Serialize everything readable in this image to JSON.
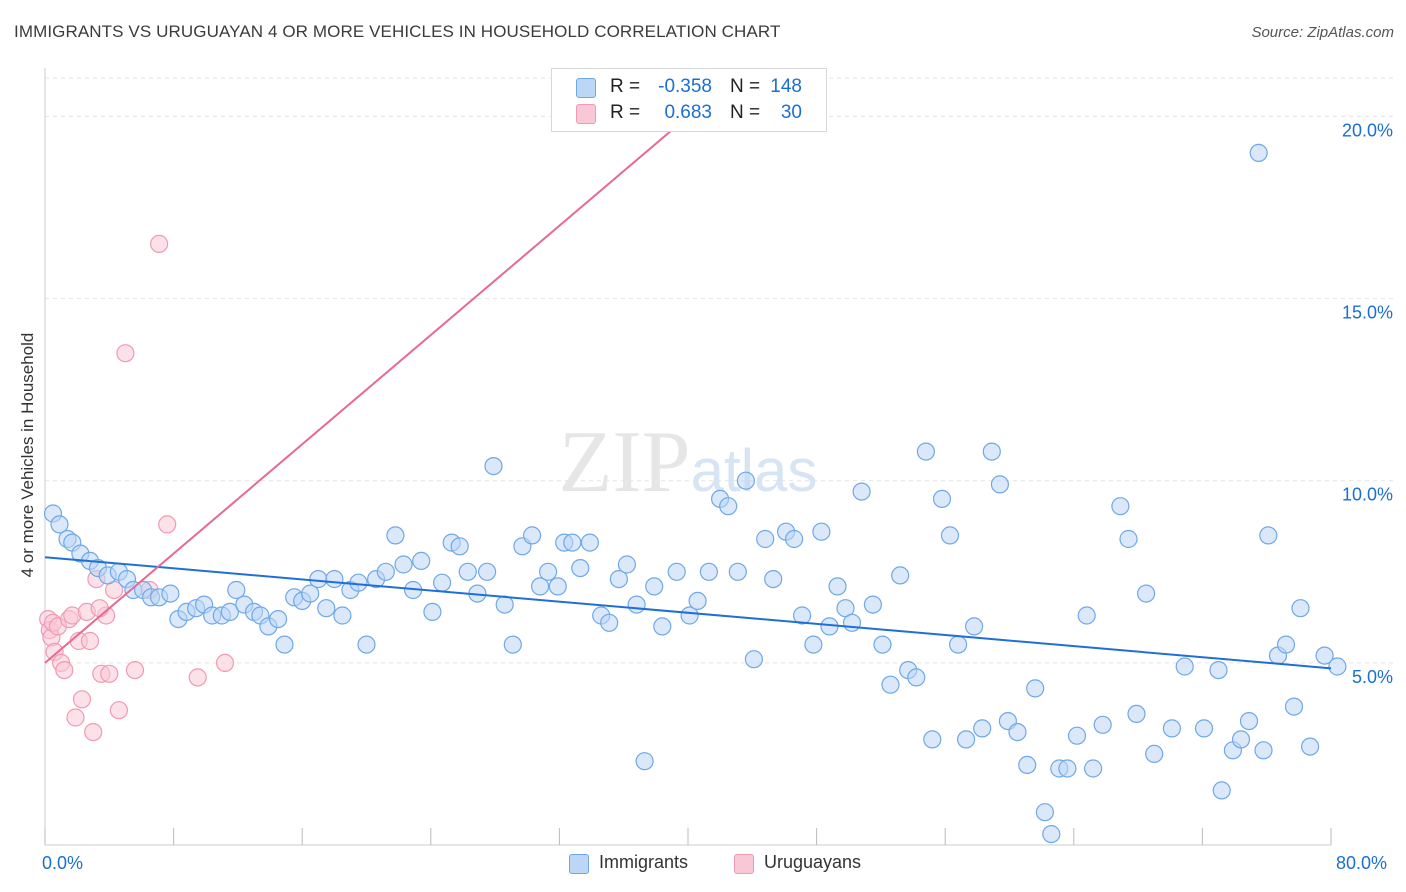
{
  "chart_data": {
    "type": "scatter",
    "title": "IMMIGRANTS VS URUGUAYAN 4 OR MORE VEHICLES IN HOUSEHOLD CORRELATION CHART",
    "source": "Source: ZipAtlas.com",
    "xlabel": "",
    "ylabel": "4 or more Vehicles in Household",
    "xlim": [
      0,
      80
    ],
    "ylim": [
      0,
      21
    ],
    "x_tick_labels": [
      "0.0%",
      "80.0%"
    ],
    "y_ticks": [
      5,
      10,
      15,
      20
    ],
    "y_tick_labels": [
      "5.0%",
      "10.0%",
      "15.0%",
      "20.0%"
    ],
    "watermark": "ZIPatlas",
    "legend_stats": [
      {
        "series": "Immigrants",
        "r_label": "R =",
        "r_value": "-0.358",
        "n_label": "N =",
        "n_value": "148"
      },
      {
        "series": "Uruguayans",
        "r_label": "R =",
        "r_value": "0.683",
        "n_label": "N =",
        "n_value": "30"
      }
    ],
    "series": [
      {
        "name": "Immigrants",
        "color": "#6fa8e8",
        "fill": "#bcd6f5",
        "line_color": "#1f6fd6",
        "trend": {
          "x0": 0,
          "y0": 7.9,
          "x1": 80,
          "y1": 4.85
        },
        "points": [
          [
            0.5,
            9.1
          ],
          [
            0.9,
            8.8
          ],
          [
            1.4,
            8.4
          ],
          [
            1.7,
            8.3
          ],
          [
            2.2,
            8.0
          ],
          [
            2.8,
            7.8
          ],
          [
            3.3,
            7.6
          ],
          [
            3.9,
            7.4
          ],
          [
            4.6,
            7.5
          ],
          [
            5.1,
            7.3
          ],
          [
            5.5,
            7.0
          ],
          [
            6.1,
            7.0
          ],
          [
            6.6,
            6.8
          ],
          [
            7.1,
            6.8
          ],
          [
            7.8,
            6.9
          ],
          [
            8.3,
            6.2
          ],
          [
            8.8,
            6.4
          ],
          [
            9.4,
            6.5
          ],
          [
            9.9,
            6.6
          ],
          [
            10.4,
            6.3
          ],
          [
            11.0,
            6.3
          ],
          [
            11.5,
            6.4
          ],
          [
            11.9,
            7.0
          ],
          [
            12.4,
            6.6
          ],
          [
            13.0,
            6.4
          ],
          [
            13.4,
            6.3
          ],
          [
            13.9,
            6.0
          ],
          [
            14.5,
            6.2
          ],
          [
            14.9,
            5.5
          ],
          [
            15.5,
            6.8
          ],
          [
            16.0,
            6.7
          ],
          [
            16.5,
            6.9
          ],
          [
            17.0,
            7.3
          ],
          [
            17.5,
            6.5
          ],
          [
            18.0,
            7.3
          ],
          [
            18.5,
            6.3
          ],
          [
            19.0,
            7.0
          ],
          [
            19.5,
            7.2
          ],
          [
            20.0,
            5.5
          ],
          [
            20.6,
            7.3
          ],
          [
            21.2,
            7.5
          ],
          [
            21.8,
            8.5
          ],
          [
            22.3,
            7.7
          ],
          [
            22.9,
            7.0
          ],
          [
            23.4,
            7.8
          ],
          [
            24.1,
            6.4
          ],
          [
            24.7,
            7.2
          ],
          [
            25.3,
            8.3
          ],
          [
            25.8,
            8.2
          ],
          [
            26.3,
            7.5
          ],
          [
            26.9,
            6.9
          ],
          [
            27.5,
            7.5
          ],
          [
            27.9,
            10.4
          ],
          [
            28.6,
            6.6
          ],
          [
            29.1,
            5.5
          ],
          [
            29.7,
            8.2
          ],
          [
            30.3,
            8.5
          ],
          [
            30.8,
            7.1
          ],
          [
            31.3,
            7.5
          ],
          [
            31.9,
            7.1
          ],
          [
            32.3,
            8.3
          ],
          [
            32.8,
            8.3
          ],
          [
            33.3,
            7.6
          ],
          [
            33.9,
            8.3
          ],
          [
            34.6,
            6.3
          ],
          [
            35.1,
            6.1
          ],
          [
            35.7,
            7.3
          ],
          [
            36.2,
            7.7
          ],
          [
            36.8,
            6.6
          ],
          [
            37.3,
            2.3
          ],
          [
            37.9,
            7.1
          ],
          [
            38.4,
            6.0
          ],
          [
            39.3,
            7.5
          ],
          [
            40.1,
            6.3
          ],
          [
            40.6,
            6.7
          ],
          [
            41.3,
            7.5
          ],
          [
            42.0,
            9.5
          ],
          [
            42.5,
            9.3
          ],
          [
            43.1,
            7.5
          ],
          [
            43.6,
            10.0
          ],
          [
            44.1,
            5.1
          ],
          [
            44.8,
            8.4
          ],
          [
            45.3,
            7.3
          ],
          [
            46.1,
            8.6
          ],
          [
            46.6,
            8.4
          ],
          [
            47.1,
            6.3
          ],
          [
            47.8,
            5.5
          ],
          [
            48.3,
            8.6
          ],
          [
            48.8,
            6.0
          ],
          [
            49.3,
            7.1
          ],
          [
            49.8,
            6.5
          ],
          [
            50.2,
            6.1
          ],
          [
            50.8,
            9.7
          ],
          [
            51.5,
            6.6
          ],
          [
            52.1,
            5.5
          ],
          [
            52.6,
            4.4
          ],
          [
            53.2,
            7.4
          ],
          [
            53.7,
            4.8
          ],
          [
            54.2,
            4.6
          ],
          [
            54.8,
            10.8
          ],
          [
            55.2,
            2.9
          ],
          [
            55.8,
            9.5
          ],
          [
            56.3,
            8.5
          ],
          [
            56.8,
            5.5
          ],
          [
            57.3,
            2.9
          ],
          [
            57.8,
            6.0
          ],
          [
            58.3,
            3.2
          ],
          [
            58.9,
            10.8
          ],
          [
            59.4,
            9.9
          ],
          [
            59.9,
            3.4
          ],
          [
            60.5,
            3.1
          ],
          [
            61.1,
            2.2
          ],
          [
            61.6,
            4.3
          ],
          [
            62.2,
            0.9
          ],
          [
            62.6,
            0.3
          ],
          [
            63.1,
            2.1
          ],
          [
            63.6,
            2.1
          ],
          [
            64.2,
            3.0
          ],
          [
            64.8,
            6.3
          ],
          [
            65.2,
            2.1
          ],
          [
            65.8,
            3.3
          ],
          [
            66.9,
            9.3
          ],
          [
            67.4,
            8.4
          ],
          [
            67.9,
            3.6
          ],
          [
            68.5,
            6.9
          ],
          [
            69.0,
            2.5
          ],
          [
            70.1,
            3.2
          ],
          [
            70.9,
            4.9
          ],
          [
            72.1,
            3.2
          ],
          [
            73.0,
            4.8
          ],
          [
            73.2,
            1.5
          ],
          [
            73.9,
            2.6
          ],
          [
            74.4,
            2.9
          ],
          [
            74.9,
            3.4
          ],
          [
            75.5,
            19.0
          ],
          [
            75.8,
            2.6
          ],
          [
            76.1,
            8.5
          ],
          [
            76.7,
            5.2
          ],
          [
            77.2,
            5.5
          ],
          [
            77.7,
            3.8
          ],
          [
            78.1,
            6.5
          ],
          [
            78.7,
            2.7
          ],
          [
            79.6,
            5.2
          ],
          [
            80.4,
            4.9
          ]
        ]
      },
      {
        "name": "Uruguayans",
        "color": "#f09ab4",
        "fill": "#f9c8d7",
        "line_color": "#e8698f",
        "trend": {
          "x0": 0,
          "y0": 5.0,
          "x1": 40,
          "y1": 20.0
        },
        "points": [
          [
            0.2,
            6.2
          ],
          [
            0.3,
            5.9
          ],
          [
            0.4,
            5.7
          ],
          [
            0.5,
            6.1
          ],
          [
            0.6,
            5.3
          ],
          [
            0.8,
            6.0
          ],
          [
            1.0,
            5.0
          ],
          [
            1.2,
            4.8
          ],
          [
            1.5,
            6.2
          ],
          [
            1.7,
            6.3
          ],
          [
            1.9,
            3.5
          ],
          [
            2.1,
            5.6
          ],
          [
            2.3,
            4.0
          ],
          [
            2.6,
            6.4
          ],
          [
            2.8,
            5.6
          ],
          [
            3.0,
            3.1
          ],
          [
            3.2,
            7.3
          ],
          [
            3.5,
            4.7
          ],
          [
            3.8,
            6.3
          ],
          [
            4.0,
            4.7
          ],
          [
            4.3,
            7.0
          ],
          [
            4.6,
            3.7
          ],
          [
            5.0,
            13.5
          ],
          [
            5.6,
            4.8
          ],
          [
            6.5,
            7.0
          ],
          [
            7.1,
            16.5
          ],
          [
            7.6,
            8.8
          ],
          [
            9.5,
            4.6
          ],
          [
            11.2,
            5.0
          ],
          [
            3.4,
            6.5
          ]
        ]
      }
    ]
  }
}
